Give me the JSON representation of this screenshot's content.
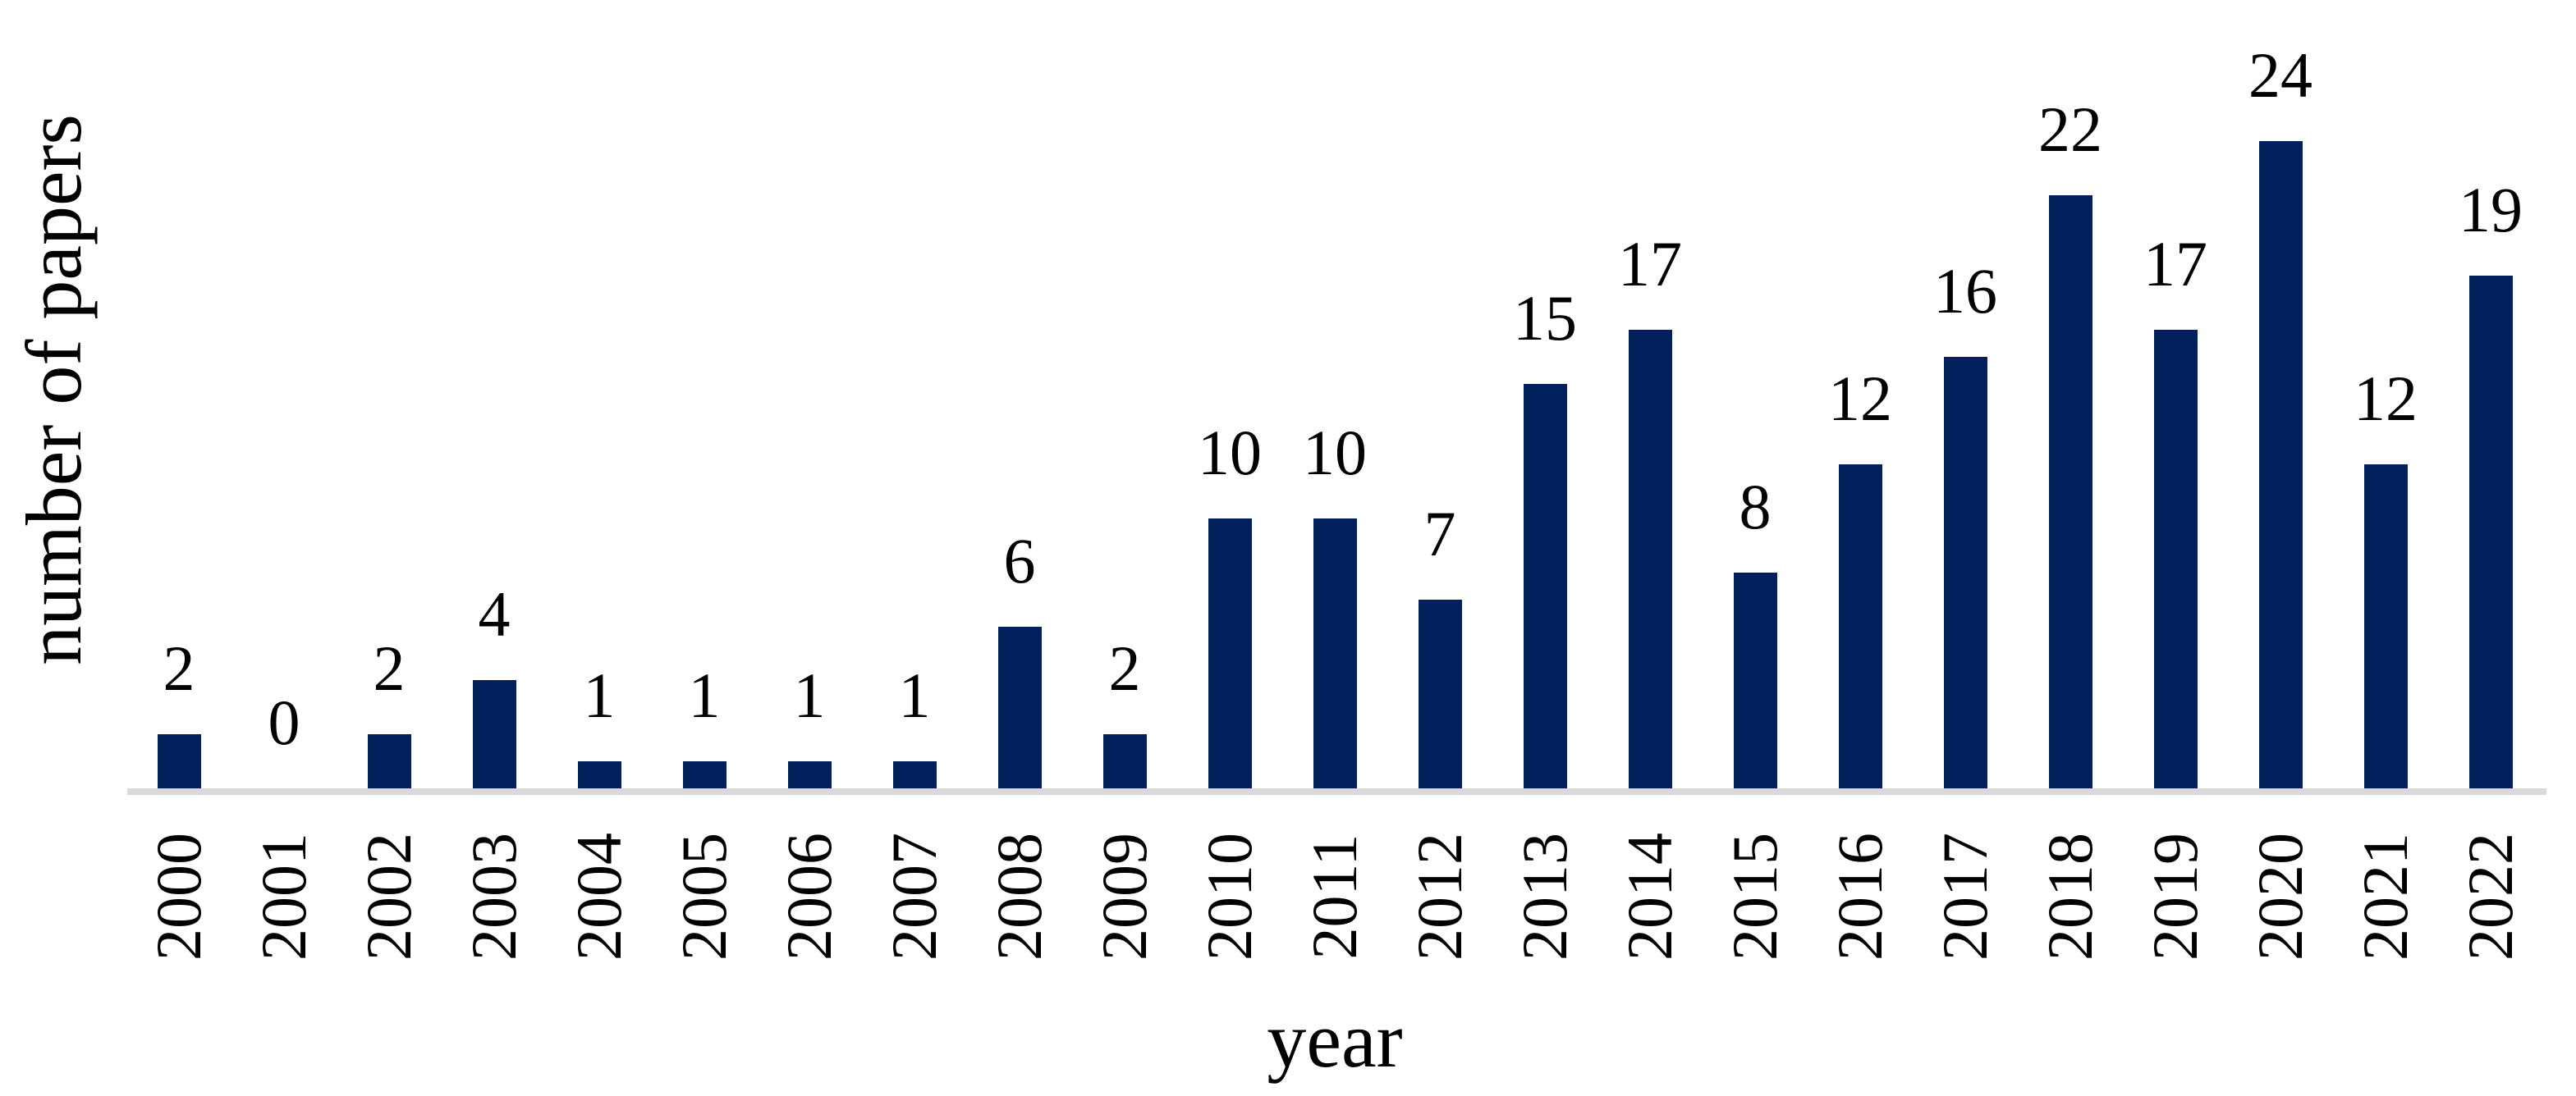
{
  "chart_data": {
    "type": "bar",
    "categories": [
      "2000",
      "2001",
      "2002",
      "2003",
      "2004",
      "2005",
      "2006",
      "2007",
      "2008",
      "2009",
      "2010",
      "2011",
      "2012",
      "2013",
      "2014",
      "2015",
      "2016",
      "2017",
      "2018",
      "2019",
      "2020",
      "2021",
      "2022"
    ],
    "values": [
      2,
      0,
      2,
      4,
      1,
      1,
      1,
      1,
      6,
      2,
      10,
      10,
      7,
      15,
      17,
      8,
      12,
      16,
      22,
      17,
      24,
      12,
      19
    ],
    "title": "",
    "xlabel": "year",
    "ylabel": "number of papers",
    "ylim": [
      0,
      24
    ],
    "grid": false,
    "legend_position": "none",
    "data_labels": "outside-end",
    "bar_color": "#02215C",
    "axis_line_color": "#D9D9D9",
    "text_color": "#000000"
  }
}
